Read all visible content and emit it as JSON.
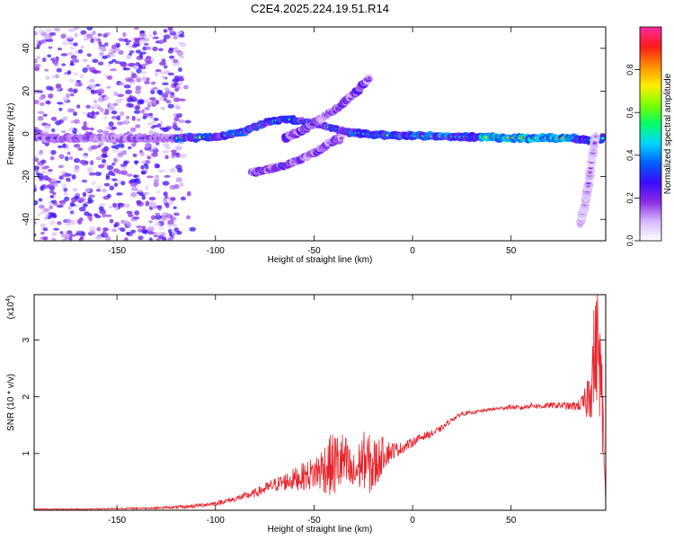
{
  "figure": {
    "title": "C2E4.2025.224.19.51.R14"
  },
  "chart_data": [
    {
      "type": "heatmap",
      "xlabel": "Height of straight line (km)",
      "ylabel": "Frequency (Hz)",
      "xlim": [
        -192,
        98
      ],
      "ylim": [
        -50,
        50
      ],
      "xticks": [
        -150,
        -100,
        -50,
        0,
        50
      ],
      "yticks": [
        -40,
        -20,
        0,
        20,
        40
      ],
      "grid": false,
      "colorbar": {
        "label": "Normalized spectral amplitude",
        "range": [
          0,
          1
        ],
        "ticks": [
          "0.0",
          "0.2",
          "0.4",
          "0.6",
          "0.8"
        ],
        "colors": [
          "#ffffff",
          "#d6b8ff",
          "#8a2be2",
          "#3a0bff",
          "#0060ff",
          "#00d5ff",
          "#00ff6a",
          "#7cff00",
          "#ffee00",
          "#ff8c00",
          "#ff1a1a",
          "#ff2aa0"
        ]
      },
      "ridges": [
        {
          "name": "main",
          "points": [
            [
              -192,
              -2
            ],
            [
              -150,
              -2
            ],
            [
              -120,
              -2
            ],
            [
              -100,
              -1.5
            ],
            [
              -85,
              1
            ],
            [
              -75,
              5
            ],
            [
              -65,
              7
            ],
            [
              -55,
              6
            ],
            [
              -45,
              4
            ],
            [
              -35,
              1
            ],
            [
              -28,
              0.5
            ],
            [
              -20,
              -0.5
            ],
            [
              0,
              -1
            ],
            [
              30,
              -1.5
            ],
            [
              60,
              -2
            ],
            [
              80,
              -2
            ],
            [
              90,
              -3
            ],
            [
              97,
              -2
            ]
          ]
        },
        {
          "name": "rising-branch",
          "points": [
            [
              -65,
              -2
            ],
            [
              -55,
              2
            ],
            [
              -45,
              8
            ],
            [
              -38,
              12
            ],
            [
              -32,
              17
            ],
            [
              -26,
              22
            ],
            [
              -22,
              26
            ]
          ]
        },
        {
          "name": "lower-branch",
          "points": [
            [
              -82,
              -18
            ],
            [
              -70,
              -16
            ],
            [
              -62,
              -14
            ],
            [
              -55,
              -11
            ],
            [
              -48,
              -8
            ],
            [
              -42,
              -4
            ],
            [
              -36,
              -2
            ]
          ]
        },
        {
          "name": "descending-tail",
          "points": [
            [
              93,
              -1
            ],
            [
              91,
              -12
            ],
            [
              89,
              -25
            ],
            [
              87,
              -35
            ],
            [
              85,
              -42
            ]
          ]
        }
      ]
    },
    {
      "type": "line",
      "xlabel": "Height of straight line (km)",
      "ylabel": "SNR (10 * v/v)",
      "ylabel_multiplier": "(x10",
      "ylabel_exponent": "4",
      "xlim": [
        -192,
        98
      ],
      "ylim": [
        0,
        3.8
      ],
      "xticks": [
        -150,
        -100,
        -50,
        0,
        50
      ],
      "yticks": [
        1,
        2,
        3
      ],
      "color": "#e8232a",
      "grid": false,
      "series": [
        {
          "x": [
            -192,
            -170,
            -150,
            -130,
            -115,
            -100,
            -90,
            -80,
            -70,
            -60,
            -50,
            -45,
            -40,
            -35,
            -30,
            -25,
            -20,
            -15,
            -10,
            -5,
            0,
            5,
            10,
            15,
            20,
            25,
            30,
            35,
            40,
            45,
            50,
            55,
            60,
            65,
            70,
            75,
            80,
            85,
            88,
            90,
            92,
            94,
            96,
            98
          ],
          "y": [
            0.02,
            0.02,
            0.03,
            0.04,
            0.06,
            0.12,
            0.2,
            0.3,
            0.45,
            0.55,
            0.65,
            0.75,
            0.8,
            0.85,
            0.6,
            0.9,
            0.75,
            1.0,
            1.05,
            1.1,
            1.2,
            1.3,
            1.35,
            1.45,
            1.6,
            1.7,
            1.72,
            1.75,
            1.78,
            1.8,
            1.82,
            1.8,
            1.85,
            1.83,
            1.85,
            1.85,
            1.83,
            1.85,
            1.9,
            2.2,
            2.6,
            3.0,
            2.0,
            0.2
          ],
          "spread": [
            0.01,
            0.01,
            0.01,
            0.02,
            0.03,
            0.04,
            0.05,
            0.08,
            0.12,
            0.2,
            0.3,
            0.45,
            0.6,
            0.55,
            0.4,
            0.5,
            0.55,
            0.3,
            0.15,
            0.1,
            0.08,
            0.07,
            0.06,
            0.05,
            0.04,
            0.04,
            0.03,
            0.03,
            0.03,
            0.03,
            0.04,
            0.04,
            0.05,
            0.05,
            0.05,
            0.06,
            0.07,
            0.1,
            0.3,
            0.6,
            1.0,
            1.0,
            0.9,
            0.1
          ]
        }
      ]
    }
  ]
}
